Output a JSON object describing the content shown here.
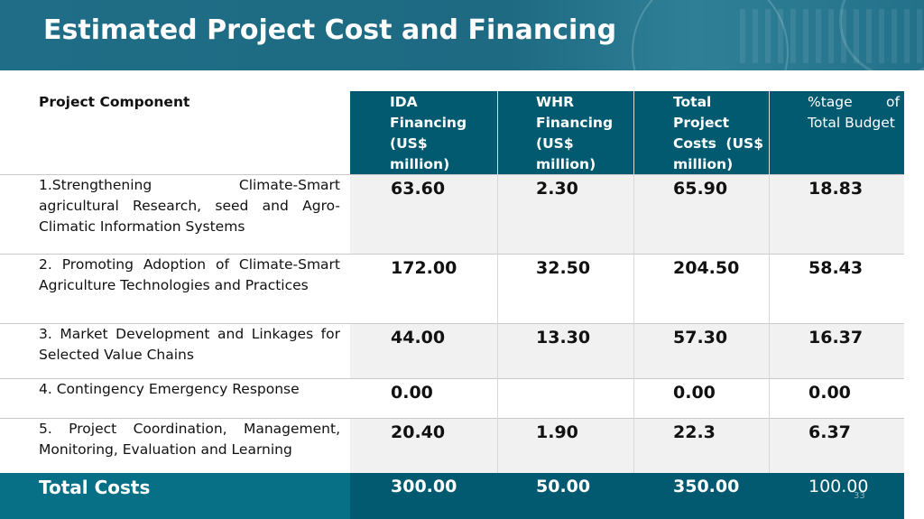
{
  "title": "Estimated Project Cost and Financing",
  "table": {
    "headers": {
      "component": "Project Component",
      "ida": "IDA Financing (US$ million)",
      "whr": "WHR Financing (US$ million)",
      "total": "Total Project Costs (US$ million)",
      "pct": "%tage of Total Budget"
    },
    "rows": [
      {
        "component": "1.Strengthening Climate-Smart agricultural Research, seed and Agro-Climatic Information Systems",
        "ida": "63.60",
        "whr": "2.30",
        "total": "65.90",
        "pct": "18.83"
      },
      {
        "component": "2. Promoting Adoption of Climate-Smart Agriculture Technologies and Practices",
        "ida": "172.00",
        "whr": "32.50",
        "total": "204.50",
        "pct": "58.43"
      },
      {
        "component": "3. Market Development and Linkages for Selected Value Chains",
        "ida": "44.00",
        "whr": "13.30",
        "total": "57.30",
        "pct": "16.37"
      },
      {
        "component": "4. Contingency Emergency Response",
        "ida": "0.00",
        "whr": "",
        "total": "0.00",
        "pct": "0.00"
      },
      {
        "component": "5. Project Coordination, Management, Monitoring, Evaluation and Learning",
        "ida": "20.40",
        "whr": "1.90",
        "total": "22.3",
        "pct": "6.37"
      }
    ],
    "totals": {
      "label": "Total Costs",
      "ida": "300.00",
      "whr": "50.00",
      "total": "350.00",
      "pct": "100.00"
    }
  },
  "page_number": "33"
}
